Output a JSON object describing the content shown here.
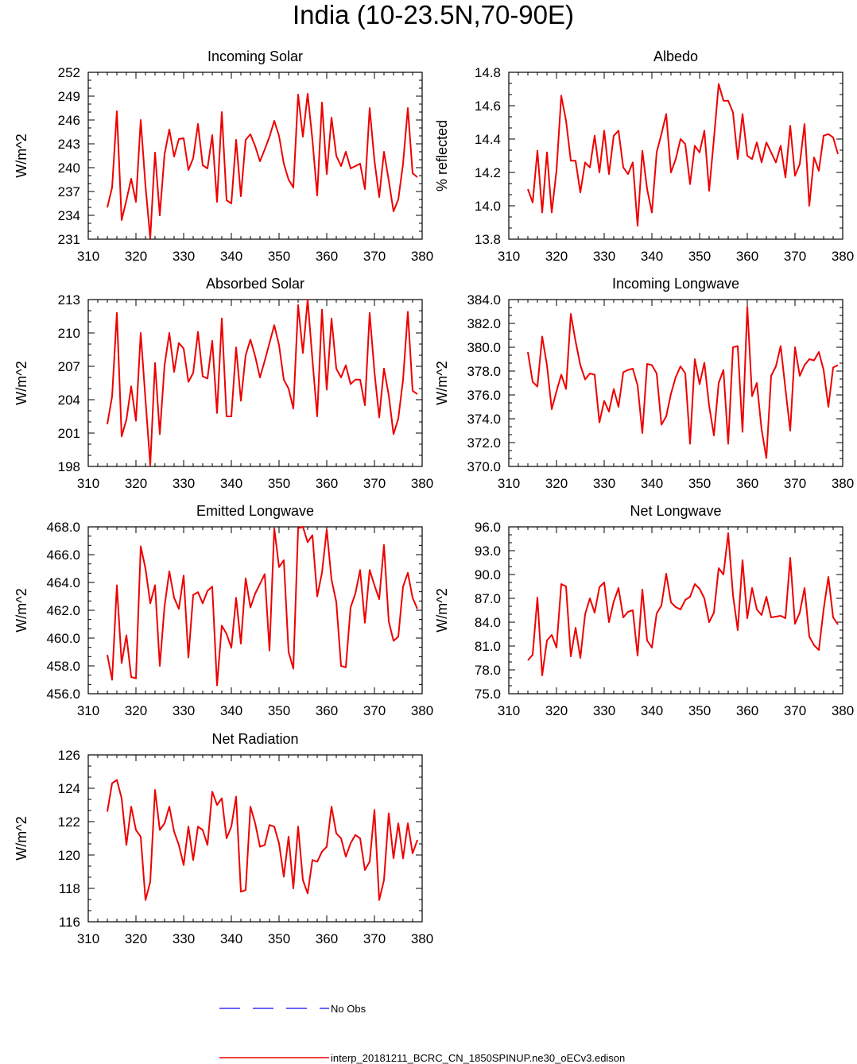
{
  "figure": {
    "title": "India (10-23.5N,70-90E)",
    "line_color": "#ee0000",
    "obs_color": "#3333ee"
  },
  "legend": {
    "obs_label": "No Obs",
    "model_label": "interp_20181211_BCRC_CN_1850SPINUP.ne30_oECv3.edison"
  },
  "chart_data": [
    {
      "type": "line",
      "title": "Incoming Solar",
      "ylabel": "W/m^2",
      "xlim": [
        310,
        380
      ],
      "ylim": [
        231,
        252
      ],
      "xticks": [
        "310",
        "320",
        "330",
        "340",
        "350",
        "360",
        "370",
        "380"
      ],
      "yticks": [
        "231",
        "234",
        "237",
        "240",
        "243",
        "246",
        "249",
        "252"
      ],
      "x": [
        314,
        315,
        316,
        317,
        318,
        319,
        320,
        321,
        322,
        323,
        324,
        325,
        326,
        327,
        328,
        329,
        330,
        331,
        332,
        333,
        334,
        335,
        336,
        337,
        338,
        339,
        340,
        341,
        342,
        343,
        344,
        345,
        346,
        347,
        348,
        349,
        350,
        351,
        352,
        353,
        354,
        355,
        356,
        357,
        358,
        359,
        360,
        361,
        362,
        363,
        364,
        365,
        366,
        367,
        368,
        369,
        370,
        371,
        372,
        373,
        374,
        375,
        376,
        377,
        378,
        379
      ],
      "series": [
        {
          "values": [
            235.0,
            237.5,
            247.1,
            233.4,
            235.9,
            238.6,
            235.7,
            246.0,
            237.7,
            231.1,
            241.9,
            234.0,
            241.7,
            244.8,
            241.4,
            243.6,
            243.7,
            239.7,
            241.2,
            245.5,
            240.3,
            239.9,
            244.1,
            235.7,
            247.0,
            235.9,
            235.5,
            243.5,
            236.4,
            243.5,
            244.2,
            242.7,
            240.8,
            242.3,
            243.9,
            245.9,
            244.0,
            240.5,
            238.5,
            237.5,
            249.2,
            243.9,
            249.3,
            243.5,
            236.5,
            248.2,
            239.2,
            246.3,
            241.5,
            240.2,
            242.0,
            239.9,
            240.2,
            240.5,
            237.3,
            247.5,
            240.9,
            236.3,
            242.0,
            238.4,
            234.5,
            236.0,
            240.5,
            247.5,
            239.3,
            238.8
          ]
        }
      ]
    },
    {
      "type": "line",
      "title": "Albedo",
      "ylabel": "% reflected",
      "xlim": [
        310,
        380
      ],
      "ylim": [
        13.8,
        14.8
      ],
      "xticks": [
        "310",
        "320",
        "330",
        "340",
        "350",
        "360",
        "370",
        "380"
      ],
      "yticks": [
        "13.8",
        "14.0",
        "14.2",
        "14.4",
        "14.6",
        "14.8"
      ],
      "x": [
        314,
        315,
        316,
        317,
        318,
        319,
        320,
        321,
        322,
        323,
        324,
        325,
        326,
        327,
        328,
        329,
        330,
        331,
        332,
        333,
        334,
        335,
        336,
        337,
        338,
        339,
        340,
        341,
        342,
        343,
        344,
        345,
        346,
        347,
        348,
        349,
        350,
        351,
        352,
        353,
        354,
        355,
        356,
        357,
        358,
        359,
        360,
        361,
        362,
        363,
        364,
        365,
        366,
        367,
        368,
        369,
        370,
        371,
        372,
        373,
        374,
        375,
        376,
        377,
        378,
        379
      ],
      "series": [
        {
          "values": [
            14.1,
            14.02,
            14.33,
            13.96,
            14.32,
            13.96,
            14.21,
            14.66,
            14.51,
            14.27,
            14.27,
            14.08,
            14.26,
            14.23,
            14.42,
            14.2,
            14.45,
            14.19,
            14.42,
            14.45,
            14.23,
            14.19,
            14.26,
            13.88,
            14.33,
            14.1,
            13.96,
            14.32,
            14.43,
            14.55,
            14.2,
            14.28,
            14.4,
            14.37,
            14.13,
            14.36,
            14.32,
            14.45,
            14.09,
            14.4,
            14.73,
            14.63,
            14.63,
            14.56,
            14.28,
            14.55,
            14.3,
            14.28,
            14.38,
            14.26,
            14.38,
            14.32,
            14.26,
            14.36,
            14.17,
            14.48,
            14.18,
            14.25,
            14.49,
            14.0,
            14.29,
            14.21,
            14.42,
            14.43,
            14.41,
            14.31
          ]
        }
      ]
    },
    {
      "type": "line",
      "title": "Absorbed Solar",
      "ylabel": "W/m^2",
      "xlim": [
        310,
        380
      ],
      "ylim": [
        198,
        213
      ],
      "xticks": [
        "310",
        "320",
        "330",
        "340",
        "350",
        "360",
        "370",
        "380"
      ],
      "yticks": [
        "198",
        "201",
        "204",
        "207",
        "210",
        "213"
      ],
      "x": [
        314,
        315,
        316,
        317,
        318,
        319,
        320,
        321,
        322,
        323,
        324,
        325,
        326,
        327,
        328,
        329,
        330,
        331,
        332,
        333,
        334,
        335,
        336,
        337,
        338,
        339,
        340,
        341,
        342,
        343,
        344,
        345,
        346,
        347,
        348,
        349,
        350,
        351,
        352,
        353,
        354,
        355,
        356,
        357,
        358,
        359,
        360,
        361,
        362,
        363,
        364,
        365,
        366,
        367,
        368,
        369,
        370,
        371,
        372,
        373,
        374,
        375,
        376,
        377,
        378,
        379
      ],
      "series": [
        {
          "values": [
            201.8,
            204.3,
            211.8,
            200.7,
            202.2,
            205.2,
            202.1,
            210.0,
            204.0,
            198.1,
            207.3,
            200.9,
            207.1,
            210.0,
            206.5,
            209.1,
            208.6,
            205.6,
            206.4,
            210.1,
            206.1,
            205.9,
            209.3,
            202.8,
            211.3,
            202.5,
            202.5,
            208.7,
            203.9,
            208.0,
            209.4,
            207.9,
            206.0,
            207.5,
            209.1,
            210.7,
            208.9,
            205.8,
            205.0,
            203.2,
            212.5,
            208.2,
            213.0,
            207.6,
            202.5,
            212.1,
            204.9,
            211.3,
            206.8,
            206.0,
            207.1,
            205.4,
            205.8,
            205.8,
            203.5,
            211.8,
            206.5,
            202.4,
            206.8,
            204.4,
            200.9,
            202.3,
            205.8,
            211.9,
            204.8,
            204.5
          ]
        }
      ]
    },
    {
      "type": "line",
      "title": "Incoming Longwave",
      "ylabel": "W/m^2",
      "xlim": [
        310,
        380
      ],
      "ylim": [
        370.0,
        384.0
      ],
      "xticks": [
        "310",
        "320",
        "330",
        "340",
        "350",
        "360",
        "370",
        "380"
      ],
      "yticks": [
        "370.0",
        "372.0",
        "374.0",
        "376.0",
        "378.0",
        "380.0",
        "382.0",
        "384.0"
      ],
      "x": [
        314,
        315,
        316,
        317,
        318,
        319,
        320,
        321,
        322,
        323,
        324,
        325,
        326,
        327,
        328,
        329,
        330,
        331,
        332,
        333,
        334,
        335,
        336,
        337,
        338,
        339,
        340,
        341,
        342,
        343,
        344,
        345,
        346,
        347,
        348,
        349,
        350,
        351,
        352,
        353,
        354,
        355,
        356,
        357,
        358,
        359,
        360,
        361,
        362,
        363,
        364,
        365,
        366,
        367,
        368,
        369,
        370,
        371,
        372,
        373,
        374,
        375,
        376,
        377,
        378,
        379
      ],
      "series": [
        {
          "values": [
            379.6,
            377.1,
            376.7,
            380.9,
            378.5,
            374.8,
            376.3,
            377.7,
            376.5,
            382.8,
            380.5,
            378.5,
            377.3,
            377.8,
            377.7,
            373.7,
            375.5,
            374.6,
            376.5,
            375.0,
            377.9,
            378.1,
            378.2,
            376.8,
            372.8,
            378.6,
            378.5,
            377.8,
            373.5,
            374.2,
            376.1,
            377.5,
            378.4,
            377.8,
            371.9,
            379.0,
            376.9,
            378.7,
            375.1,
            372.6,
            377.0,
            378.1,
            371.9,
            380.0,
            380.1,
            372.9,
            383.4,
            375.9,
            377.0,
            373.1,
            370.7,
            377.6,
            378.4,
            380.1,
            376.5,
            373.0,
            380.0,
            377.6,
            378.5,
            379.0,
            378.9,
            379.6,
            378.1,
            375.0,
            378.3,
            378.5
          ]
        }
      ]
    },
    {
      "type": "line",
      "title": "Emitted Longwave",
      "ylabel": "W/m^2",
      "xlim": [
        310,
        380
      ],
      "ylim": [
        456.0,
        468.0
      ],
      "xticks": [
        "310",
        "320",
        "330",
        "340",
        "350",
        "360",
        "370",
        "380"
      ],
      "yticks": [
        "456.0",
        "458.0",
        "460.0",
        "462.0",
        "464.0",
        "466.0",
        "468.0"
      ],
      "x": [
        314,
        315,
        316,
        317,
        318,
        319,
        320,
        321,
        322,
        323,
        324,
        325,
        326,
        327,
        328,
        329,
        330,
        331,
        332,
        333,
        334,
        335,
        336,
        337,
        338,
        339,
        340,
        341,
        342,
        343,
        344,
        345,
        346,
        347,
        348,
        349,
        350,
        351,
        352,
        353,
        354,
        355,
        356,
        357,
        358,
        359,
        360,
        361,
        362,
        363,
        364,
        365,
        366,
        367,
        368,
        369,
        370,
        371,
        372,
        373,
        374,
        375,
        376,
        377,
        378,
        379
      ],
      "series": [
        {
          "values": [
            458.8,
            457.0,
            463.8,
            458.2,
            460.2,
            457.2,
            457.1,
            466.6,
            465.0,
            462.5,
            463.8,
            458.0,
            462.3,
            464.8,
            462.9,
            462.1,
            464.5,
            458.6,
            463.1,
            463.3,
            462.5,
            463.4,
            463.7,
            456.6,
            460.9,
            460.3,
            459.3,
            462.9,
            459.6,
            464.3,
            462.2,
            463.2,
            463.9,
            464.6,
            459.1,
            467.9,
            465.1,
            465.6,
            459.0,
            457.8,
            467.9,
            468.0,
            466.9,
            467.4,
            463.0,
            464.7,
            467.8,
            464.2,
            462.6,
            458.0,
            457.9,
            462.2,
            463.2,
            464.9,
            461.1,
            464.9,
            463.8,
            462.8,
            466.7,
            461.2,
            459.8,
            460.1,
            463.7,
            464.7,
            462.9,
            462.1
          ]
        }
      ]
    },
    {
      "type": "line",
      "title": "Net Longwave",
      "ylabel": "W/m^2",
      "xlim": [
        310,
        380
      ],
      "ylim": [
        75.0,
        96.0
      ],
      "xticks": [
        "310",
        "320",
        "330",
        "340",
        "350",
        "360",
        "370",
        "380"
      ],
      "yticks": [
        "75.0",
        "78.0",
        "81.0",
        "84.0",
        "87.0",
        "90.0",
        "93.0",
        "96.0"
      ],
      "x": [
        314,
        315,
        316,
        317,
        318,
        319,
        320,
        321,
        322,
        323,
        324,
        325,
        326,
        327,
        328,
        329,
        330,
        331,
        332,
        333,
        334,
        335,
        336,
        337,
        338,
        339,
        340,
        341,
        342,
        343,
        344,
        345,
        346,
        347,
        348,
        349,
        350,
        351,
        352,
        353,
        354,
        355,
        356,
        357,
        358,
        359,
        360,
        361,
        362,
        363,
        364,
        365,
        366,
        367,
        368,
        369,
        370,
        371,
        372,
        373,
        374,
        375,
        376,
        377,
        378,
        379
      ],
      "series": [
        {
          "values": [
            79.2,
            79.9,
            87.1,
            77.3,
            81.7,
            82.4,
            80.8,
            88.8,
            88.5,
            79.7,
            83.3,
            79.5,
            85.0,
            87.0,
            85.2,
            88.4,
            89.0,
            84.0,
            86.6,
            88.3,
            84.6,
            85.3,
            85.5,
            79.8,
            88.1,
            81.7,
            80.8,
            85.1,
            86.1,
            90.1,
            86.5,
            85.9,
            85.6,
            86.8,
            87.2,
            88.8,
            88.2,
            87.0,
            84.0,
            85.2,
            90.8,
            90.0,
            95.2,
            87.4,
            83.0,
            91.8,
            84.5,
            88.3,
            85.6,
            84.9,
            87.2,
            84.6,
            84.7,
            84.8,
            84.5,
            92.1,
            83.8,
            85.2,
            88.3,
            82.2,
            81.1,
            80.5,
            85.6,
            89.7,
            84.6,
            83.7
          ]
        }
      ]
    },
    {
      "type": "line",
      "title": "Net Radiation",
      "ylabel": "W/m^2",
      "xlim": [
        310,
        380
      ],
      "ylim": [
        116,
        126
      ],
      "xticks": [
        "310",
        "320",
        "330",
        "340",
        "350",
        "360",
        "370",
        "380"
      ],
      "yticks": [
        "116",
        "118",
        "120",
        "122",
        "124",
        "126"
      ],
      "x": [
        314,
        315,
        316,
        317,
        318,
        319,
        320,
        321,
        322,
        323,
        324,
        325,
        326,
        327,
        328,
        329,
        330,
        331,
        332,
        333,
        334,
        335,
        336,
        337,
        338,
        339,
        340,
        341,
        342,
        343,
        344,
        345,
        346,
        347,
        348,
        349,
        350,
        351,
        352,
        353,
        354,
        355,
        356,
        357,
        358,
        359,
        360,
        361,
        362,
        363,
        364,
        365,
        366,
        367,
        368,
        369,
        370,
        371,
        372,
        373,
        374,
        375,
        376,
        377,
        378,
        379
      ],
      "series": [
        {
          "values": [
            122.6,
            124.3,
            124.5,
            123.4,
            120.6,
            122.9,
            121.5,
            121.1,
            117.3,
            118.4,
            123.9,
            121.5,
            121.9,
            122.9,
            121.4,
            120.6,
            119.4,
            121.7,
            119.7,
            121.7,
            121.5,
            120.6,
            123.8,
            123.0,
            123.4,
            121.0,
            121.7,
            123.5,
            117.8,
            117.9,
            122.9,
            121.9,
            120.5,
            120.6,
            121.8,
            121.7,
            120.7,
            118.7,
            121.1,
            118.0,
            121.7,
            118.5,
            117.7,
            119.7,
            119.6,
            120.2,
            120.5,
            122.9,
            121.3,
            121.0,
            119.9,
            120.7,
            121.2,
            121.0,
            119.1,
            119.6,
            122.7,
            117.3,
            118.5,
            122.5,
            119.8,
            121.9,
            119.8,
            121.9,
            120.1,
            120.9
          ]
        }
      ]
    }
  ]
}
